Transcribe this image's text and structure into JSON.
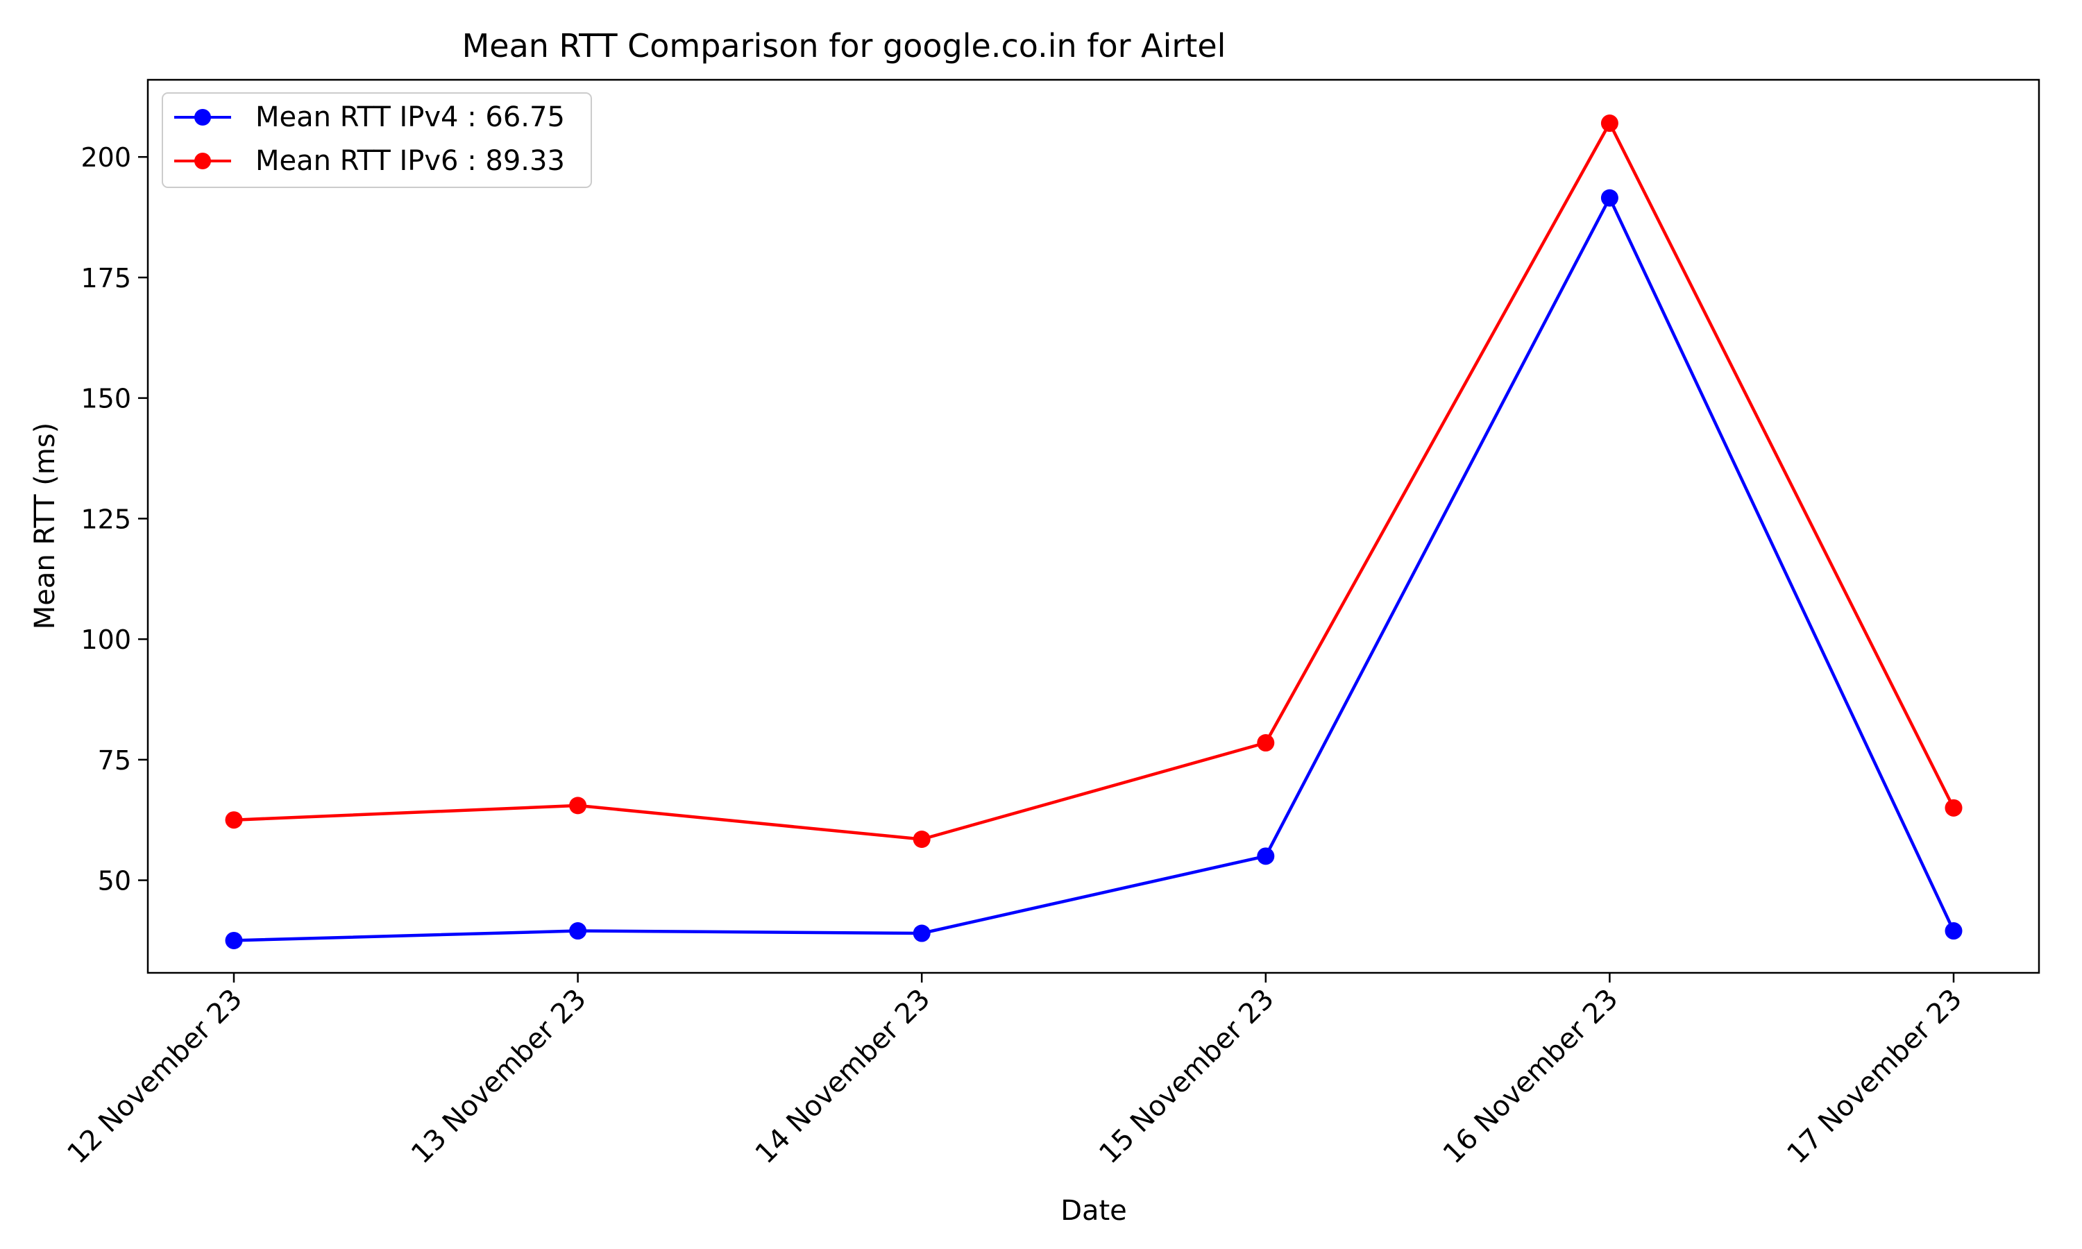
{
  "chart_data": {
    "type": "line",
    "title": "Mean RTT Comparison for google.co.in for Airtel",
    "xlabel": "Date",
    "ylabel": "Mean RTT (ms)",
    "categories": [
      "12 November 23",
      "13 November 23",
      "14 November 23",
      "15 November 23",
      "16 November 23",
      "17 November 23"
    ],
    "yticks": [
      50,
      75,
      100,
      125,
      150,
      175,
      200
    ],
    "ylim": [
      30.8,
      216.0
    ],
    "grid": false,
    "legend_position": "top-left",
    "series": [
      {
        "name": "Mean RTT IPv4 : 66.75",
        "color": "#0000ff",
        "values": [
          37.5,
          39.5,
          39.0,
          55.0,
          191.5,
          39.5
        ]
      },
      {
        "name": "Mean RTT IPv6 : 89.33",
        "color": "#ff0000",
        "values": [
          62.5,
          65.5,
          58.5,
          78.5,
          207.0,
          65.0
        ]
      }
    ]
  }
}
